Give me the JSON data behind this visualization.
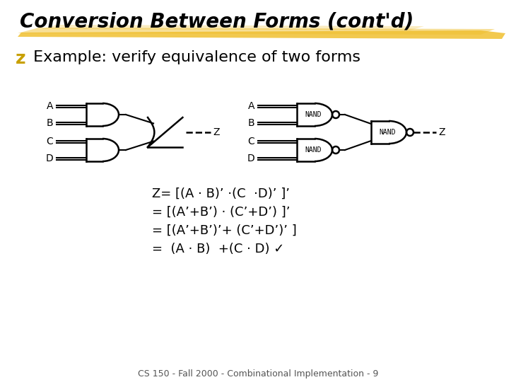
{
  "title": "Conversion Between Forms (cont'd)",
  "bullet_z": "z",
  "bullet_text": " Example: verify equivalence of two forms",
  "highlight_color": "#F0C030",
  "bg_color": "#FFFFFF",
  "title_fontsize": 20,
  "bullet_fontsize": 16,
  "eq_fontsize": 13,
  "equation_lines": [
    "Z= [(A · B)’ ·(C  ·D)’ ]’",
    "= [(A’+B’) · (C’+D’) ]’",
    "= [(A’+B’)’+ (C’+D’)’ ]",
    "=  (A · B)  +(C · D) ✓"
  ],
  "footer": "CS 150 - Fall 2000 - Combinational Implementation - 9",
  "footer_fontsize": 9
}
